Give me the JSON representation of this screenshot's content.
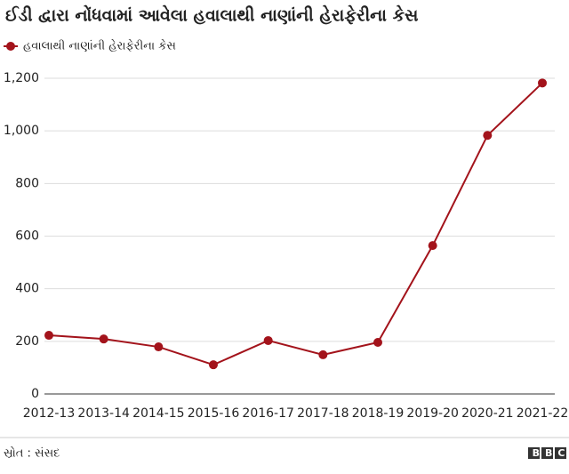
{
  "chart_data": {
    "type": "line",
    "title": "ઈડી દ્વારા નોંધવામાં આવેલા હવાલાથી નાણાંની હેરાફેરીના કેસ",
    "categories": [
      "2012-13",
      "2013-14",
      "2014-15",
      "2015-16",
      "2016-17",
      "2017-18",
      "2018-19",
      "2019-20",
      "2020-21",
      "2021-22"
    ],
    "series": [
      {
        "name": "હવાલાથી નાણાંની હેરાફેરીના કેસ",
        "color": "#a3131b",
        "values": [
          223,
          209,
          179,
          111,
          203,
          149,
          196,
          564,
          983,
          1182
        ]
      }
    ],
    "ylim": [
      0,
      1200
    ],
    "yticks": [
      0,
      200,
      400,
      600,
      800,
      {
        "value": 1000,
        "label": "1,000"
      },
      {
        "value": 1200,
        "label": "1,200"
      }
    ],
    "grid": true,
    "legend": "top-left",
    "source": "સ્રોત : સંસદ",
    "logo": "BBC"
  }
}
